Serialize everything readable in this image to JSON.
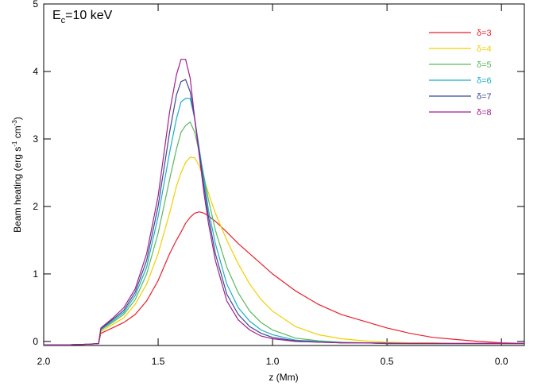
{
  "chart_data": {
    "type": "line",
    "annotation": [
      "E",
      "c",
      "=10 keV"
    ],
    "y_label": [
      "Beam heating (erg s",
      "-1",
      " cm",
      "-3",
      ")"
    ],
    "x_label": "z (Mm)",
    "x": [
      2.0,
      1.9,
      1.8,
      1.76,
      1.75,
      1.7,
      1.65,
      1.6,
      1.55,
      1.5,
      1.45,
      1.42,
      1.4,
      1.38,
      1.36,
      1.34,
      1.32,
      1.3,
      1.28,
      1.25,
      1.2,
      1.15,
      1.1,
      1.05,
      1.0,
      0.9,
      0.8,
      0.7,
      0.6,
      0.5,
      0.4,
      0.3,
      0.2,
      0.1,
      0.0,
      -0.1
    ],
    "series": [
      {
        "name": "δ=3",
        "color": "#e8202a",
        "values": [
          -0.05,
          -0.05,
          -0.04,
          -0.03,
          0.12,
          0.2,
          0.28,
          0.4,
          0.6,
          0.9,
          1.3,
          1.5,
          1.62,
          1.75,
          1.84,
          1.9,
          1.92,
          1.9,
          1.86,
          1.78,
          1.62,
          1.45,
          1.3,
          1.15,
          1.0,
          0.75,
          0.55,
          0.4,
          0.3,
          0.2,
          0.12,
          0.06,
          0.03,
          0.0,
          -0.02,
          -0.03
        ]
      },
      {
        "name": "δ=4",
        "color": "#f2cf00",
        "values": [
          -0.05,
          -0.05,
          -0.04,
          -0.03,
          0.15,
          0.25,
          0.35,
          0.55,
          0.85,
          1.3,
          1.9,
          2.3,
          2.5,
          2.65,
          2.73,
          2.72,
          2.6,
          2.4,
          2.2,
          1.9,
          1.5,
          1.15,
          0.85,
          0.62,
          0.45,
          0.22,
          0.1,
          0.04,
          0.01,
          -0.01,
          -0.02,
          -0.02,
          -0.03,
          -0.03,
          -0.03,
          -0.03
        ]
      },
      {
        "name": "δ=5",
        "color": "#5db85a",
        "values": [
          -0.05,
          -0.05,
          -0.04,
          -0.03,
          0.17,
          0.28,
          0.4,
          0.62,
          1.0,
          1.6,
          2.4,
          2.85,
          3.1,
          3.2,
          3.25,
          3.1,
          2.8,
          2.45,
          2.1,
          1.65,
          1.1,
          0.72,
          0.45,
          0.28,
          0.17,
          0.05,
          0.01,
          -0.01,
          -0.02,
          -0.02,
          -0.03,
          -0.03,
          -0.03,
          -0.03,
          -0.03,
          -0.03
        ]
      },
      {
        "name": "δ=6",
        "color": "#1aaec6",
        "values": [
          -0.05,
          -0.05,
          -0.04,
          -0.03,
          0.18,
          0.3,
          0.43,
          0.68,
          1.1,
          1.85,
          2.8,
          3.3,
          3.55,
          3.6,
          3.6,
          3.3,
          2.85,
          2.4,
          1.95,
          1.45,
          0.85,
          0.5,
          0.3,
          0.17,
          0.1,
          0.02,
          0.0,
          -0.02,
          -0.02,
          -0.03,
          -0.03,
          -0.03,
          -0.03,
          -0.03,
          -0.03,
          -0.03
        ]
      },
      {
        "name": "δ=7",
        "color": "#3b4a8c",
        "values": [
          -0.05,
          -0.05,
          -0.04,
          -0.03,
          0.19,
          0.32,
          0.46,
          0.73,
          1.2,
          2.0,
          3.1,
          3.65,
          3.85,
          3.88,
          3.7,
          3.3,
          2.8,
          2.3,
          1.85,
          1.3,
          0.7,
          0.4,
          0.22,
          0.12,
          0.06,
          0.01,
          -0.01,
          -0.02,
          -0.02,
          -0.03,
          -0.03,
          -0.03,
          -0.03,
          -0.03,
          -0.03,
          -0.03
        ]
      },
      {
        "name": "δ=8",
        "color": "#a21f8c",
        "values": [
          -0.05,
          -0.05,
          -0.04,
          -0.03,
          0.2,
          0.34,
          0.5,
          0.78,
          1.3,
          2.15,
          3.4,
          3.95,
          4.18,
          4.18,
          3.9,
          3.3,
          2.75,
          2.2,
          1.75,
          1.2,
          0.6,
          0.32,
          0.17,
          0.08,
          0.04,
          0.0,
          -0.01,
          -0.02,
          -0.02,
          -0.03,
          -0.03,
          -0.03,
          -0.03,
          -0.03,
          -0.03,
          -0.03
        ]
      }
    ],
    "xlim": [
      2.0,
      -0.1
    ],
    "xticks": [
      {
        "value": 2,
        "label": "2.0"
      },
      1.5,
      {
        "value": 1,
        "label": "1.0"
      },
      0.5,
      {
        "value": 0,
        "label": "0.0"
      }
    ],
    "ylim": [
      -0.06,
      5
    ],
    "yticks": [
      0,
      1,
      2,
      3,
      4,
      5
    ],
    "legend": "top-right"
  }
}
